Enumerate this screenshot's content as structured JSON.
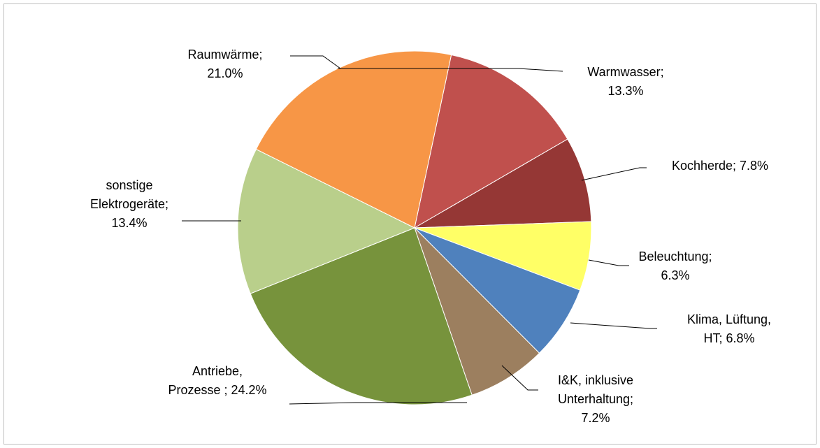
{
  "chart_data": {
    "type": "pie",
    "categories": [
      "Warmwasser;",
      "Kochherde;",
      "Beleuchtung;",
      "Klima, Lüftung, HT;",
      "I&K, inklusive Unterhaltung;",
      "Antriebe, Prozesse ;",
      "sonstige Elektrogeräte;",
      "Raumwärme;"
    ],
    "values": [
      13.3,
      7.8,
      6.3,
      6.8,
      7.2,
      24.2,
      13.4,
      21.0
    ],
    "value_labels": [
      "13.3%",
      "7.8%",
      "6.3%",
      "6.8%",
      "7.2%",
      "24.2%",
      "13.4%",
      "21.0%"
    ],
    "colors": [
      "#c0504d",
      "#953735",
      "#ffff66",
      "#4f81bd",
      "#9c7f5f",
      "#77933c",
      "#b9cf8b",
      "#f79646"
    ]
  }
}
